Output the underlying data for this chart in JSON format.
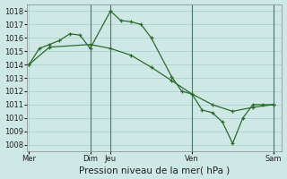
{
  "line1_x": [
    0,
    0.5,
    1,
    1.5,
    2,
    2.5,
    3,
    4,
    4.5,
    5,
    5.5,
    6,
    7,
    7.5,
    8,
    8.5,
    9,
    9.5,
    10,
    10.5,
    11,
    11.5,
    12
  ],
  "line1_y": [
    1014.0,
    1015.2,
    1015.5,
    1015.8,
    1016.3,
    1016.2,
    1015.2,
    1018.0,
    1017.3,
    1017.2,
    1017.0,
    1016.0,
    1013.1,
    1012.0,
    1011.8,
    1010.6,
    1010.4,
    1009.7,
    1008.1,
    1010.0,
    1011.0,
    1011.0,
    1011.0
  ],
  "line2_x": [
    0,
    1,
    3,
    4,
    5,
    6,
    7,
    8,
    9,
    10,
    11,
    12
  ],
  "line2_y": [
    1014.0,
    1015.3,
    1015.5,
    1015.2,
    1014.7,
    1013.8,
    1012.8,
    1011.8,
    1011.0,
    1010.5,
    1010.8,
    1011.0
  ],
  "line_color": "#2d6b2d",
  "bg_color": "#cde8e5",
  "grid_color": "#aaccc8",
  "xlabel": "Pression niveau de la mer( hPa )",
  "ylim": [
    1007.5,
    1018.5
  ],
  "yticks": [
    1008,
    1009,
    1010,
    1011,
    1012,
    1013,
    1014,
    1015,
    1016,
    1017,
    1018
  ],
  "xlim": [
    -0.1,
    12.4
  ],
  "day_tick_positions": [
    0,
    3,
    4,
    8,
    12
  ],
  "day_tick_labels": [
    "Mer",
    "Dim",
    "Jeu",
    "Ven",
    "Sam"
  ],
  "vline_positions": [
    3,
    4,
    8,
    12
  ],
  "tick_fontsize": 6.0,
  "xlabel_fontsize": 7.5
}
